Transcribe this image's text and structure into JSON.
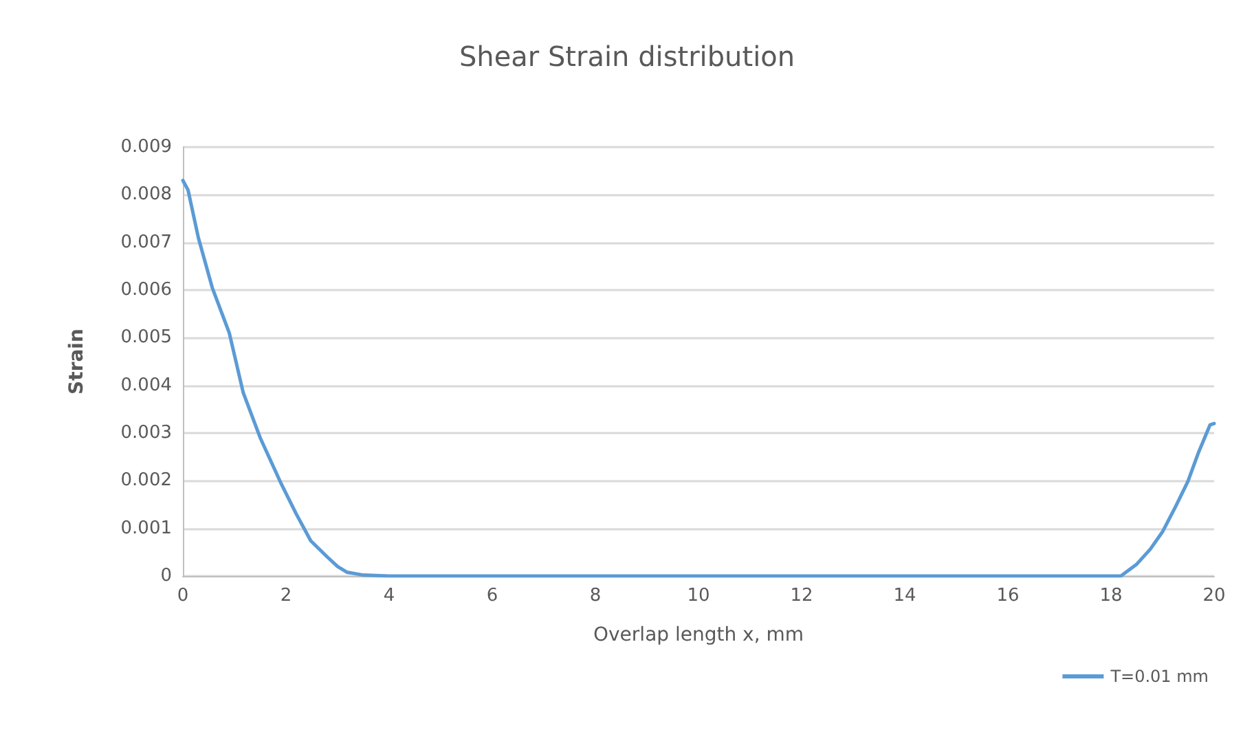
{
  "chart_data": {
    "type": "line",
    "title": "Shear Strain distribution",
    "xlabel": "Overlap length x, mm",
    "ylabel": "Strain",
    "xlim": [
      0,
      20
    ],
    "xticks": [
      0,
      2,
      4,
      6,
      8,
      10,
      12,
      14,
      16,
      18,
      20
    ],
    "ylim": [
      0,
      0.009
    ],
    "yticks": [
      0,
      0.001,
      0.002,
      0.003,
      0.004,
      0.005,
      0.006,
      0.007,
      0.008,
      0.009
    ],
    "grid": "y",
    "legend": "bottom right",
    "marker": "none",
    "line_style": "solid",
    "series": [
      {
        "name": "T=0.01 mm",
        "color": "#5b9bd5",
        "x": [
          0,
          0.1,
          0.3,
          0.57,
          0.9,
          1.17,
          1.5,
          1.91,
          2.2,
          2.48,
          2.8,
          3.0,
          3.18,
          3.5,
          4,
          5,
          8,
          12,
          16,
          18.19,
          18.5,
          18.76,
          19.0,
          19.25,
          19.49,
          19.7,
          19.92,
          20
        ],
        "values": [
          0.0083,
          0.0081,
          0.0071,
          0.00605,
          0.0051,
          0.00385,
          0.0029,
          0.00193,
          0.0013,
          0.00074,
          0.0004,
          0.0002,
          8e-05,
          2e-05,
          0,
          0,
          0,
          0,
          0,
          0,
          0.00025,
          0.00056,
          0.00093,
          0.00145,
          0.00198,
          0.0026,
          0.00317,
          0.0032
        ]
      }
    ]
  }
}
